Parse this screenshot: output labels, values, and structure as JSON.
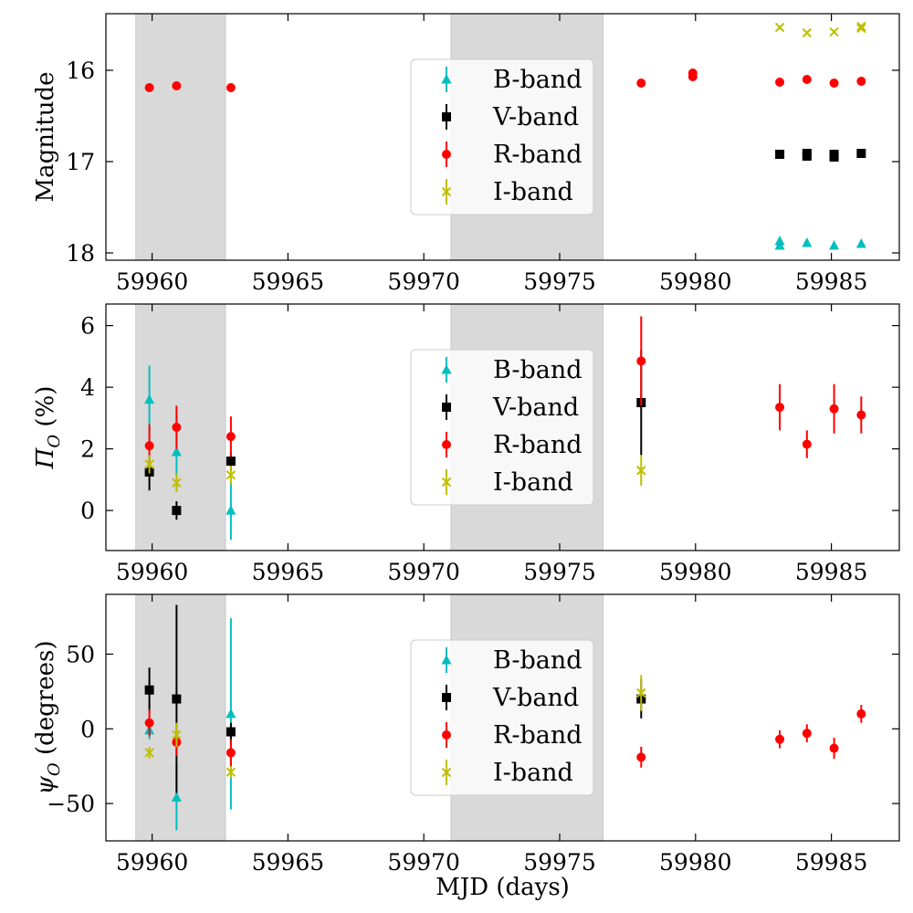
{
  "colors": {
    "B": "#00bfbf",
    "V": "#000000",
    "R": "#ff0000",
    "I": "#bfbf00",
    "shade": "#d9d9d9"
  },
  "chart_data": [
    {
      "type": "scatter",
      "id": "magnitude",
      "ylabel": "Magnitude",
      "xlabel": "",
      "xlim": [
        59958.3,
        59987.5
      ],
      "ylim": [
        18.08,
        15.38
      ],
      "y_inverted": true,
      "yticks": [
        16,
        17,
        18
      ],
      "xticks": [
        59960,
        59965,
        59970,
        59975,
        59980,
        59985
      ],
      "shaded_x_ranges": [
        [
          59959.4,
          59962.7
        ],
        [
          59971.0,
          59976.6
        ]
      ],
      "legend": {
        "entries": [
          "B-band",
          "V-band",
          "R-band",
          "I-band"
        ],
        "placement": "upper-center"
      },
      "series": [
        {
          "name": "B-band",
          "marker": "triangle",
          "points": [
            {
              "x": 59983.1,
              "y": 17.87,
              "err": 0.03
            },
            {
              "x": 59983.1,
              "y": 17.92,
              "err": 0.03
            },
            {
              "x": 59984.1,
              "y": 17.89,
              "err": 0.02
            },
            {
              "x": 59985.1,
              "y": 17.92,
              "err": 0.02
            },
            {
              "x": 59986.1,
              "y": 17.9,
              "err": 0.02
            }
          ]
        },
        {
          "name": "V-band",
          "marker": "square",
          "points": [
            {
              "x": 59983.1,
              "y": 16.92,
              "err": 0.02
            },
            {
              "x": 59984.1,
              "y": 16.91,
              "err": 0.02
            },
            {
              "x": 59984.1,
              "y": 16.94,
              "err": 0.02
            },
            {
              "x": 59985.1,
              "y": 16.92,
              "err": 0.02
            },
            {
              "x": 59985.1,
              "y": 16.95,
              "err": 0.02
            },
            {
              "x": 59986.1,
              "y": 16.91,
              "err": 0.02
            }
          ]
        },
        {
          "name": "R-band",
          "marker": "circle",
          "points": [
            {
              "x": 59959.9,
              "y": 16.19,
              "err": 0.01
            },
            {
              "x": 59960.9,
              "y": 16.17,
              "err": 0.01
            },
            {
              "x": 59962.9,
              "y": 16.19,
              "err": 0.01
            },
            {
              "x": 59978.0,
              "y": 16.14,
              "err": 0.01
            },
            {
              "x": 59979.9,
              "y": 16.03,
              "err": 0.01
            },
            {
              "x": 59979.9,
              "y": 16.07,
              "err": 0.01
            },
            {
              "x": 59983.1,
              "y": 16.13,
              "err": 0.01
            },
            {
              "x": 59984.1,
              "y": 16.1,
              "err": 0.01
            },
            {
              "x": 59985.1,
              "y": 16.14,
              "err": 0.01
            },
            {
              "x": 59986.1,
              "y": 16.12,
              "err": 0.01
            }
          ]
        },
        {
          "name": "I-band",
          "marker": "x",
          "points": [
            {
              "x": 59983.1,
              "y": 15.53,
              "err": 0.02
            },
            {
              "x": 59984.1,
              "y": 15.59,
              "err": 0.02
            },
            {
              "x": 59985.1,
              "y": 15.58,
              "err": 0.02
            },
            {
              "x": 59986.1,
              "y": 15.54,
              "err": 0.02
            },
            {
              "x": 59986.1,
              "y": 15.52,
              "err": 0.02
            }
          ]
        }
      ]
    },
    {
      "type": "scatter",
      "id": "polarization",
      "ylabel": "Π",
      "ylabel_sub": "O",
      "ylabel_suffix": " (%)",
      "xlabel": "",
      "xlim": [
        59958.3,
        59987.5
      ],
      "ylim": [
        -1.3,
        6.7
      ],
      "y_inverted": false,
      "yticks": [
        0,
        2,
        4,
        6
      ],
      "xticks": [
        59960,
        59965,
        59970,
        59975,
        59980,
        59985
      ],
      "shaded_x_ranges": [
        [
          59959.4,
          59962.7
        ],
        [
          59971.0,
          59976.6
        ]
      ],
      "legend": {
        "entries": [
          "B-band",
          "V-band",
          "R-band",
          "I-band"
        ],
        "placement": "upper-center"
      },
      "series": [
        {
          "name": "B-band",
          "marker": "triangle",
          "points": [
            {
              "x": 59959.9,
              "y": 3.6,
              "err": 1.1
            },
            {
              "x": 59960.9,
              "y": 1.9,
              "err": 1.2
            },
            {
              "x": 59962.9,
              "y": 0.0,
              "err": 0.95
            }
          ]
        },
        {
          "name": "V-band",
          "marker": "square",
          "points": [
            {
              "x": 59959.9,
              "y": 1.25,
              "err": 0.6
            },
            {
              "x": 59960.9,
              "y": 0.0,
              "err": 0.3
            },
            {
              "x": 59962.9,
              "y": 1.6,
              "err": 0.3
            },
            {
              "x": 59978.0,
              "y": 3.5,
              "err": 1.7
            }
          ]
        },
        {
          "name": "R-band",
          "marker": "circle",
          "points": [
            {
              "x": 59959.9,
              "y": 2.1,
              "err": 0.7
            },
            {
              "x": 59960.9,
              "y": 2.7,
              "err": 0.7
            },
            {
              "x": 59962.9,
              "y": 2.4,
              "err": 0.65
            },
            {
              "x": 59978.0,
              "y": 4.85,
              "err": 1.45
            },
            {
              "x": 59983.1,
              "y": 3.35,
              "err": 0.75
            },
            {
              "x": 59984.1,
              "y": 2.15,
              "err": 0.45
            },
            {
              "x": 59985.1,
              "y": 3.3,
              "err": 0.8
            },
            {
              "x": 59986.1,
              "y": 3.1,
              "err": 0.6
            }
          ]
        },
        {
          "name": "I-band",
          "marker": "x",
          "points": [
            {
              "x": 59959.9,
              "y": 1.5,
              "err": 0.3
            },
            {
              "x": 59960.9,
              "y": 0.9,
              "err": 0.3
            },
            {
              "x": 59962.9,
              "y": 1.15,
              "err": 0.3
            },
            {
              "x": 59978.0,
              "y": 1.3,
              "err": 0.5
            }
          ]
        }
      ]
    },
    {
      "type": "scatter",
      "id": "angle",
      "ylabel": "ψ",
      "ylabel_sub": "O",
      "ylabel_suffix": " (degrees)",
      "xlabel": "MJD (days)",
      "xlim": [
        59958.3,
        59987.5
      ],
      "ylim": [
        -75,
        90
      ],
      "y_inverted": false,
      "yticks": [
        -50,
        0,
        50
      ],
      "xticks": [
        59960,
        59965,
        59970,
        59975,
        59980,
        59985
      ],
      "shaded_x_ranges": [
        [
          59959.4,
          59962.7
        ],
        [
          59971.0,
          59976.6
        ]
      ],
      "legend": {
        "entries": [
          "B-band",
          "V-band",
          "R-band",
          "I-band"
        ],
        "placement": "upper-center"
      },
      "series": [
        {
          "name": "B-band",
          "marker": "triangle",
          "points": [
            {
              "x": 59959.9,
              "y": -1,
              "err": 6
            },
            {
              "x": 59960.9,
              "y": -46,
              "err": 22
            },
            {
              "x": 59962.9,
              "y": 10,
              "err": 64
            }
          ]
        },
        {
          "name": "V-band",
          "marker": "square",
          "points": [
            {
              "x": 59959.9,
              "y": 26,
              "err": 15
            },
            {
              "x": 59960.9,
              "y": 20,
              "err": 63
            },
            {
              "x": 59962.9,
              "y": -2,
              "err": 6
            },
            {
              "x": 59978.0,
              "y": 20,
              "err": 13
            }
          ]
        },
        {
          "name": "R-band",
          "marker": "circle",
          "points": [
            {
              "x": 59959.9,
              "y": 4,
              "err": 9
            },
            {
              "x": 59960.9,
              "y": -9,
              "err": 9
            },
            {
              "x": 59962.9,
              "y": -16,
              "err": 9
            },
            {
              "x": 59978.0,
              "y": -19,
              "err": 7
            },
            {
              "x": 59983.1,
              "y": -7,
              "err": 6
            },
            {
              "x": 59984.1,
              "y": -3,
              "err": 6
            },
            {
              "x": 59985.1,
              "y": -13,
              "err": 7
            },
            {
              "x": 59986.1,
              "y": 10,
              "err": 6
            }
          ]
        },
        {
          "name": "I-band",
          "marker": "x",
          "points": [
            {
              "x": 59959.9,
              "y": -16,
              "err": 4
            },
            {
              "x": 59960.9,
              "y": -4,
              "err": 8
            },
            {
              "x": 59962.9,
              "y": -29,
              "err": 4
            },
            {
              "x": 59978.0,
              "y": 24,
              "err": 12
            }
          ]
        }
      ]
    }
  ]
}
